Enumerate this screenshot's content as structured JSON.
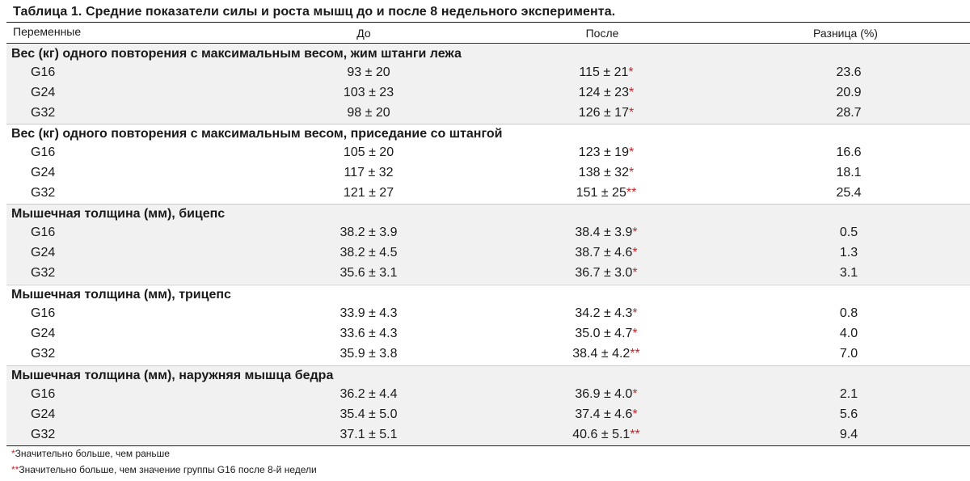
{
  "caption": "Таблица 1. Средние показатели силы и роста мышц до и после 8 недельного эксперимента.",
  "headers": {
    "variable": "Переменные",
    "before": "До",
    "after": "После",
    "difference": "Разница (%)"
  },
  "sections": [
    {
      "title": "Вес (кг) одного повторения с максимальным весом, жим штанги лежа",
      "rows": [
        {
          "group": "G16",
          "before": "93 ± 20",
          "after": "115 ± 21",
          "mark": "*",
          "diff": "23.6"
        },
        {
          "group": "G24",
          "before": "103 ± 23",
          "after": "124 ± 23",
          "mark": "*",
          "diff": "20.9"
        },
        {
          "group": "G32",
          "before": "98 ± 20",
          "after": "126 ± 17",
          "mark": "*",
          "diff": "28.7"
        }
      ]
    },
    {
      "title": "Вес (кг) одного повторения с максимальным весом, приседание со штангой",
      "rows": [
        {
          "group": "G16",
          "before": "105 ± 20",
          "after": "123 ± 19",
          "mark": "*",
          "diff": "16.6"
        },
        {
          "group": "G24",
          "before": "117 ± 32",
          "after": "138 ± 32",
          "mark": "*",
          "diff": "18.1"
        },
        {
          "group": "G32",
          "before": "121 ± 27",
          "after": "151 ± 25",
          "mark": "**",
          "diff": "25.4"
        }
      ]
    },
    {
      "title": "Мышечная толщина (мм), бицепс",
      "rows": [
        {
          "group": "G16",
          "before": "38.2 ± 3.9",
          "after": "38.4 ± 3.9",
          "mark": "*",
          "diff": "0.5"
        },
        {
          "group": "G24",
          "before": "38.2 ± 4.5",
          "after": "38.7 ± 4.6",
          "mark": "*",
          "diff": "1.3"
        },
        {
          "group": "G32",
          "before": "35.6 ± 3.1",
          "after": "36.7 ± 3.0",
          "mark": "*",
          "diff": "3.1"
        }
      ]
    },
    {
      "title": "Мышечная толщина (мм), трицепс",
      "rows": [
        {
          "group": "G16",
          "before": "33.9 ± 4.3",
          "after": "34.2 ± 4.3",
          "mark": "*",
          "diff": "0.8"
        },
        {
          "group": "G24",
          "before": "33.6 ± 4.3",
          "after": "35.0 ± 4.7",
          "mark": "*",
          "diff": "4.0"
        },
        {
          "group": "G32",
          "before": "35.9 ± 3.8",
          "after": "38.4 ± 4.2",
          "mark": "**",
          "diff": "7.0"
        }
      ]
    },
    {
      "title": "Мышечная толщина (мм), наружняя мышца бедра",
      "rows": [
        {
          "group": "G16",
          "before": "36.2 ± 4.4",
          "after": "36.9 ± 4.0",
          "mark": "*",
          "diff": "2.1"
        },
        {
          "group": "G24",
          "before": "35.4 ± 5.0",
          "after": "37.4 ± 4.6",
          "mark": "*",
          "diff": "5.6"
        },
        {
          "group": "G32",
          "before": "37.1 ± 5.1",
          "after": "40.6 ± 5.1",
          "mark": "**",
          "diff": "9.4"
        }
      ]
    }
  ],
  "footnotes": [
    {
      "mark": "*",
      "text": "Значительно больше, чем раньше"
    },
    {
      "mark": "**",
      "text": "Значительно больше, чем значение группы G16 после 8-й недели"
    }
  ],
  "colors": {
    "significance_mark": "#c0282d",
    "shaded_row": "#f1f1f1"
  }
}
